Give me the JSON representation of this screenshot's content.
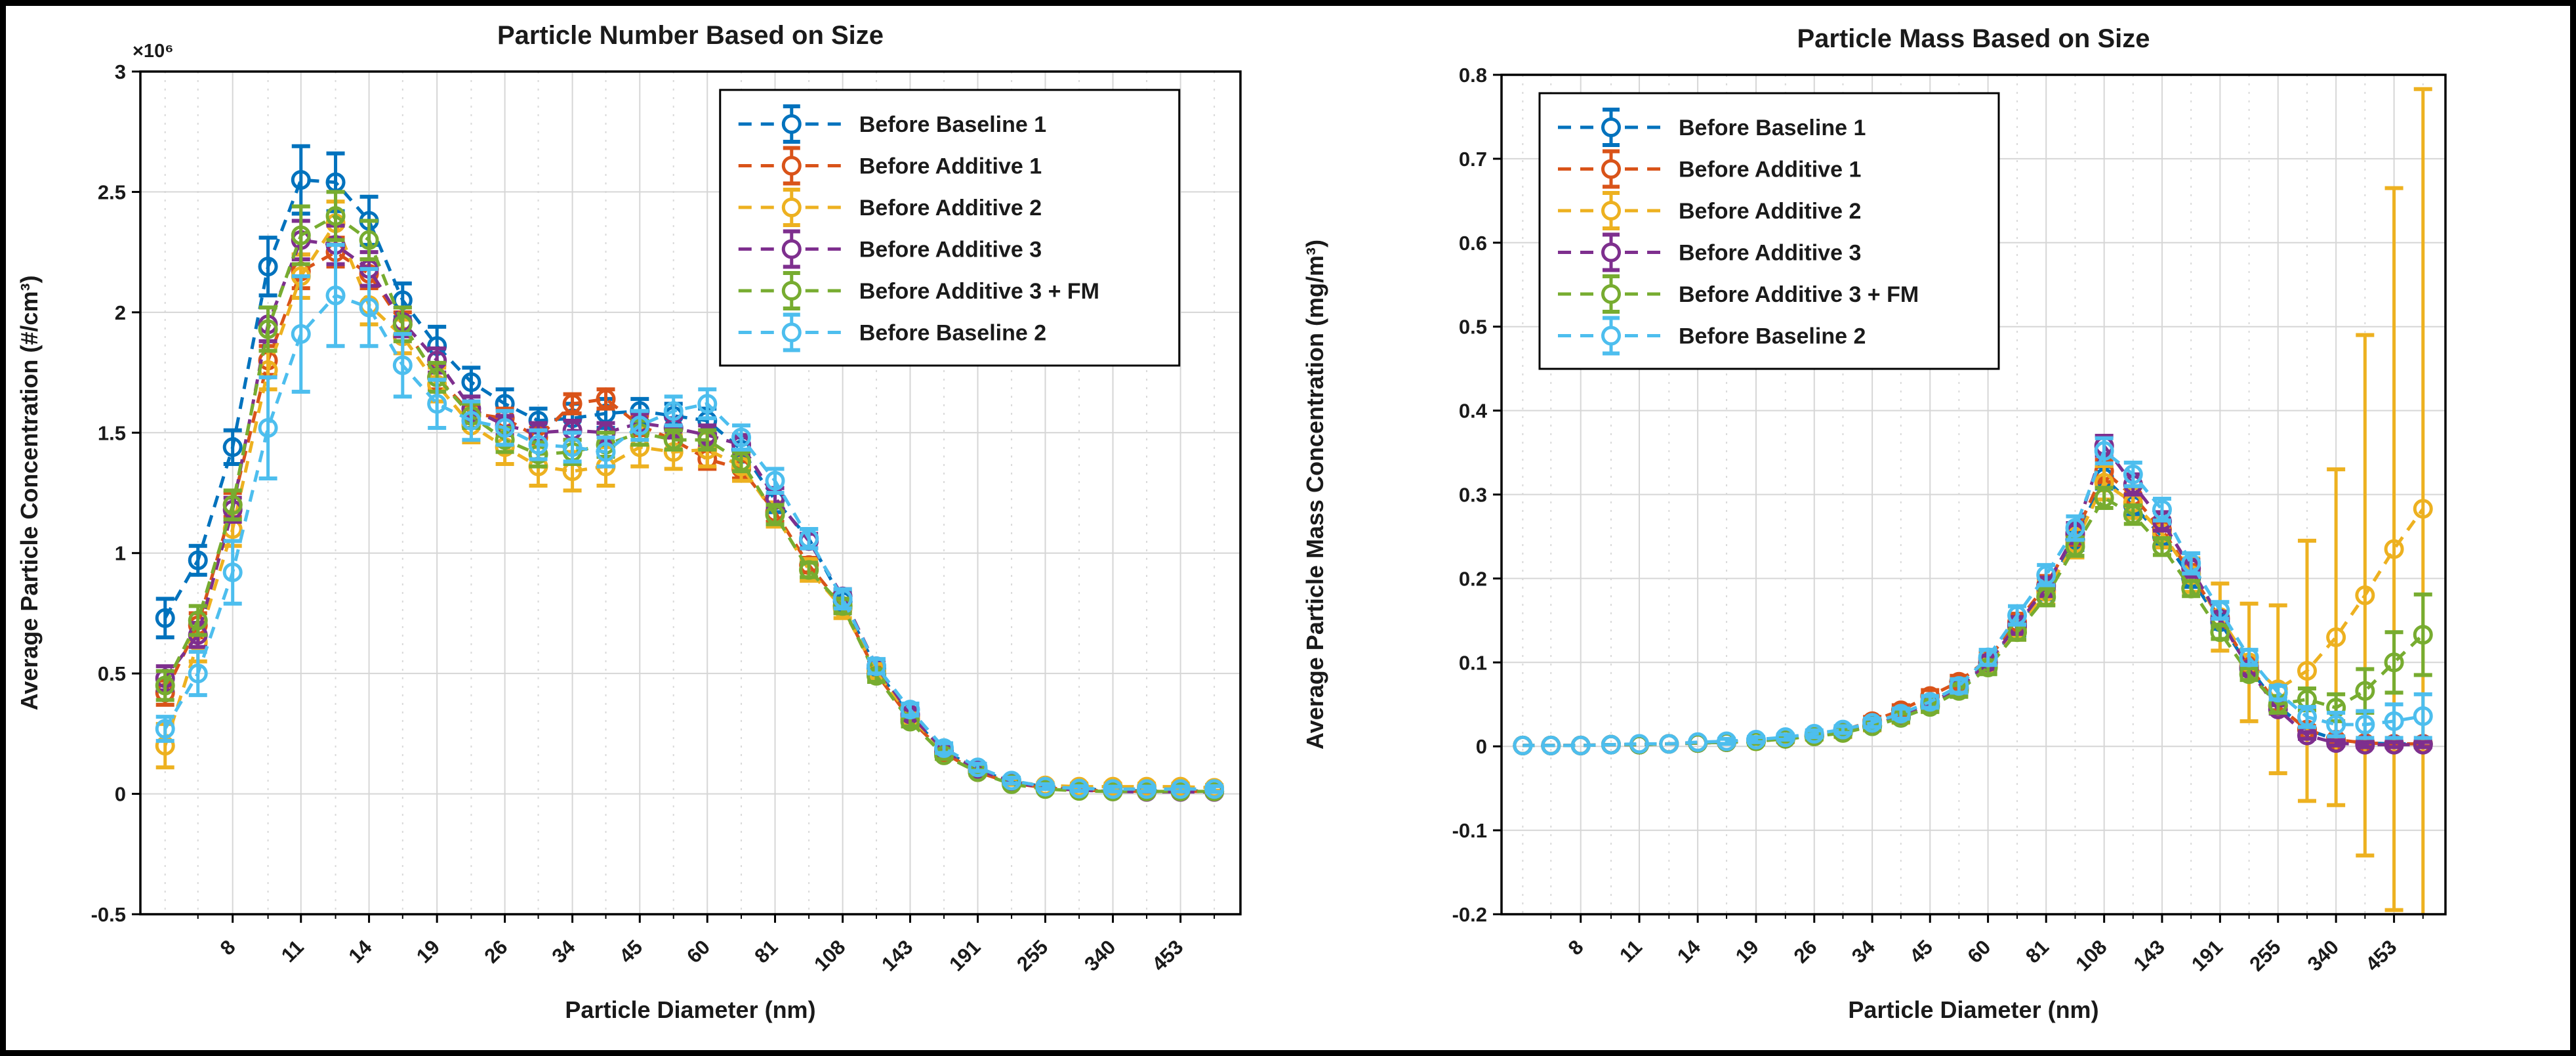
{
  "figure": {
    "background": "#ffffff",
    "frame_color": "#000000",
    "axis_color": "#000000",
    "grid_major_color": "#d6d6d6",
    "grid_minor_color": "#d9d9d9",
    "text_color": "#1a1a1a"
  },
  "chart_data": [
    {
      "type": "line",
      "id": "particle-number",
      "title": "Particle Number Based on Size",
      "xlabel": "Particle Diameter (nm)",
      "ylabel": "Average Particle Concentration (#/cm³)",
      "y_exponent_label": "×10⁶",
      "x_scale": "log",
      "xlim": [
        5.4,
        585
      ],
      "ylim": [
        -0.5,
        3
      ],
      "grid": true,
      "legend_position": "top-right-inside",
      "x": [
        6.0,
        6.9,
        8.0,
        9.3,
        10.7,
        12.4,
        14.3,
        16.5,
        19.1,
        22.1,
        25.5,
        29.4,
        34.0,
        39.2,
        45.3,
        52.3,
        60.4,
        69.8,
        80.6,
        93.1,
        107.5,
        124.1,
        143.3,
        165.5,
        191.1,
        220.7,
        254.8,
        294.3,
        339.8,
        392.4,
        453.2,
        523.3
      ],
      "x_tick_labels": [
        "8",
        "11",
        "14",
        "19",
        "26",
        "34",
        "45",
        "60",
        "81",
        "108",
        "143",
        "191",
        "255",
        "340",
        "453"
      ],
      "ytick_labels": [
        "-0.5",
        "0",
        "0.5",
        "1",
        "1.5",
        "2",
        "2.5",
        "3"
      ],
      "series": [
        {
          "name": "Before Baseline 1",
          "color": "#0072BD",
          "values": [
            0.73,
            0.97,
            1.44,
            2.19,
            2.55,
            2.54,
            2.38,
            2.05,
            1.86,
            1.71,
            1.62,
            1.55,
            1.56,
            1.58,
            1.59,
            1.57,
            1.55,
            1.43,
            1.22,
            1.06,
            0.8,
            0.52,
            0.32,
            0.18,
            0.1,
            0.05,
            0.03,
            0.02,
            0.015,
            0.012,
            0.012,
            0.012
          ],
          "errors": [
            0.08,
            0.06,
            0.07,
            0.12,
            0.14,
            0.12,
            0.1,
            0.07,
            0.08,
            0.06,
            0.06,
            0.05,
            0.06,
            0.06,
            0.05,
            0.05,
            0.05,
            0.05,
            0.05,
            0.04,
            0.04,
            0.03,
            0.03,
            0.02,
            0.015,
            0.01,
            0.008,
            0.006,
            0.005,
            0.005,
            0.005,
            0.005
          ]
        },
        {
          "name": "Before Additive 1",
          "color": "#D95319",
          "values": [
            0.42,
            0.7,
            1.2,
            1.8,
            2.17,
            2.25,
            2.16,
            1.95,
            1.73,
            1.58,
            1.56,
            1.48,
            1.62,
            1.64,
            1.53,
            1.47,
            1.39,
            1.35,
            1.17,
            0.95,
            0.78,
            0.5,
            0.31,
            0.17,
            0.09,
            0.045,
            0.025,
            0.015,
            0.012,
            0.01,
            0.01,
            0.01
          ],
          "errors": [
            0.05,
            0.05,
            0.05,
            0.06,
            0.07,
            0.06,
            0.06,
            0.05,
            0.05,
            0.04,
            0.04,
            0.04,
            0.04,
            0.04,
            0.04,
            0.04,
            0.04,
            0.04,
            0.04,
            0.03,
            0.03,
            0.025,
            0.02,
            0.015,
            0.01,
            0.008,
            0.006,
            0.005,
            0.005,
            0.005,
            0.005,
            0.005
          ]
        },
        {
          "name": "Before Additive 2",
          "color": "#EDB120",
          "values": [
            0.2,
            0.63,
            1.1,
            1.76,
            2.15,
            2.37,
            2.03,
            1.9,
            1.7,
            1.53,
            1.44,
            1.36,
            1.34,
            1.36,
            1.44,
            1.42,
            1.43,
            1.36,
            1.16,
            0.93,
            0.77,
            0.51,
            0.32,
            0.18,
            0.1,
            0.05,
            0.035,
            0.03,
            0.03,
            0.03,
            0.03,
            0.025
          ],
          "errors": [
            0.09,
            0.08,
            0.07,
            0.08,
            0.09,
            0.09,
            0.08,
            0.07,
            0.07,
            0.07,
            0.07,
            0.08,
            0.08,
            0.08,
            0.08,
            0.07,
            0.07,
            0.06,
            0.05,
            0.045,
            0.04,
            0.03,
            0.025,
            0.02,
            0.015,
            0.012,
            0.01,
            0.012,
            0.012,
            0.012,
            0.012,
            0.012
          ]
        },
        {
          "name": "Before Additive 3",
          "color": "#7E2F8E",
          "values": [
            0.48,
            0.66,
            1.18,
            1.95,
            2.3,
            2.28,
            2.18,
            1.96,
            1.8,
            1.6,
            1.53,
            1.5,
            1.51,
            1.5,
            1.54,
            1.52,
            1.49,
            1.45,
            1.23,
            1.05,
            0.82,
            0.53,
            0.33,
            0.18,
            0.1,
            0.05,
            0.025,
            0.015,
            0.01,
            0.008,
            0.008,
            0.008
          ],
          "errors": [
            0.05,
            0.05,
            0.05,
            0.07,
            0.08,
            0.08,
            0.07,
            0.06,
            0.05,
            0.05,
            0.04,
            0.04,
            0.04,
            0.04,
            0.04,
            0.04,
            0.04,
            0.04,
            0.04,
            0.03,
            0.03,
            0.025,
            0.02,
            0.015,
            0.01,
            0.008,
            0.006,
            0.005,
            0.005,
            0.005,
            0.005,
            0.005
          ]
        },
        {
          "name": "Before Additive 3 + FM",
          "color": "#77AC30",
          "values": [
            0.45,
            0.72,
            1.2,
            1.93,
            2.32,
            2.4,
            2.3,
            1.95,
            1.73,
            1.57,
            1.47,
            1.41,
            1.42,
            1.45,
            1.5,
            1.47,
            1.47,
            1.38,
            1.16,
            0.93,
            0.78,
            0.49,
            0.3,
            0.16,
            0.09,
            0.04,
            0.02,
            0.012,
            0.01,
            0.01,
            0.01,
            0.01
          ],
          "errors": [
            0.06,
            0.06,
            0.06,
            0.09,
            0.12,
            0.1,
            0.08,
            0.07,
            0.06,
            0.05,
            0.05,
            0.05,
            0.05,
            0.05,
            0.05,
            0.04,
            0.04,
            0.04,
            0.04,
            0.03,
            0.03,
            0.025,
            0.02,
            0.015,
            0.01,
            0.008,
            0.006,
            0.005,
            0.005,
            0.005,
            0.005,
            0.005
          ]
        },
        {
          "name": "Before Baseline 2",
          "color": "#4DBEEE",
          "values": [
            0.27,
            0.5,
            0.92,
            1.52,
            1.91,
            2.07,
            2.02,
            1.78,
            1.62,
            1.55,
            1.52,
            1.45,
            1.44,
            1.42,
            1.53,
            1.59,
            1.62,
            1.48,
            1.3,
            1.06,
            0.81,
            0.53,
            0.35,
            0.19,
            0.11,
            0.055,
            0.03,
            0.022,
            0.02,
            0.02,
            0.02,
            0.02
          ],
          "errors": [
            0.05,
            0.09,
            0.13,
            0.21,
            0.24,
            0.21,
            0.16,
            0.13,
            0.1,
            0.08,
            0.07,
            0.06,
            0.06,
            0.06,
            0.06,
            0.06,
            0.06,
            0.05,
            0.05,
            0.04,
            0.04,
            0.03,
            0.025,
            0.02,
            0.015,
            0.012,
            0.01,
            0.01,
            0.01,
            0.01,
            0.01,
            0.012
          ]
        }
      ]
    },
    {
      "type": "line",
      "id": "particle-mass",
      "title": "Particle Mass Based on Size",
      "xlabel": "Particle Diameter (nm)",
      "ylabel": "Average Particle Mass Concentration (mg/m³)",
      "y_exponent_label": "",
      "x_scale": "log",
      "xlim": [
        5.4,
        585
      ],
      "ylim": [
        -0.2,
        0.8
      ],
      "grid": true,
      "legend_position": "top-left-inside",
      "x": [
        6.0,
        6.9,
        8.0,
        9.3,
        10.7,
        12.4,
        14.3,
        16.5,
        19.1,
        22.1,
        25.5,
        29.4,
        34.0,
        39.2,
        45.3,
        52.3,
        60.4,
        69.8,
        80.6,
        93.1,
        107.5,
        124.1,
        143.3,
        165.5,
        191.1,
        220.7,
        254.8,
        294.3,
        339.8,
        392.4,
        453.2,
        523.3
      ],
      "x_tick_labels": [
        "8",
        "11",
        "14",
        "19",
        "26",
        "34",
        "45",
        "60",
        "81",
        "108",
        "143",
        "191",
        "255",
        "340",
        "453"
      ],
      "ytick_labels": [
        "-0.2",
        "-0.1",
        "0",
        "0.1",
        "0.2",
        "0.3",
        "0.4",
        "0.5",
        "0.6",
        "0.7",
        "0.8"
      ],
      "series": [
        {
          "name": "Before Baseline 1",
          "color": "#0072BD",
          "values": [
            0.001,
            0.001,
            0.001,
            0.002,
            0.002,
            0.003,
            0.004,
            0.005,
            0.007,
            0.009,
            0.012,
            0.017,
            0.024,
            0.034,
            0.048,
            0.068,
            0.098,
            0.142,
            0.186,
            0.246,
            0.32,
            0.287,
            0.25,
            0.2,
            0.148,
            0.094,
            0.048,
            0.02,
            0.008,
            0.004,
            0.003,
            0.003
          ],
          "errors": [
            0.002,
            0.002,
            0.002,
            0.002,
            0.002,
            0.002,
            0.002,
            0.002,
            0.003,
            0.003,
            0.003,
            0.004,
            0.004,
            0.005,
            0.006,
            0.007,
            0.008,
            0.01,
            0.011,
            0.012,
            0.013,
            0.012,
            0.011,
            0.01,
            0.008,
            0.006,
            0.005,
            0.004,
            0.003,
            0.003,
            0.003,
            0.003
          ]
        },
        {
          "name": "Before Additive 1",
          "color": "#D95319",
          "values": [
            0.001,
            0.001,
            0.001,
            0.002,
            0.002,
            0.003,
            0.004,
            0.005,
            0.007,
            0.01,
            0.014,
            0.019,
            0.03,
            0.043,
            0.06,
            0.077,
            0.104,
            0.148,
            0.192,
            0.252,
            0.328,
            0.298,
            0.258,
            0.206,
            0.152,
            0.096,
            0.048,
            0.02,
            0.008,
            0.004,
            0.003,
            0.003
          ],
          "errors": [
            0.002,
            0.002,
            0.002,
            0.002,
            0.002,
            0.002,
            0.002,
            0.002,
            0.003,
            0.003,
            0.003,
            0.004,
            0.005,
            0.006,
            0.007,
            0.007,
            0.008,
            0.01,
            0.011,
            0.012,
            0.013,
            0.012,
            0.011,
            0.01,
            0.008,
            0.006,
            0.005,
            0.004,
            0.003,
            0.003,
            0.003,
            0.003
          ]
        },
        {
          "name": "Before Additive 2",
          "color": "#EDB120",
          "values": [
            0.001,
            0.001,
            0.001,
            0.002,
            0.002,
            0.003,
            0.004,
            0.005,
            0.006,
            0.009,
            0.012,
            0.016,
            0.025,
            0.036,
            0.05,
            0.07,
            0.098,
            0.14,
            0.184,
            0.242,
            0.314,
            0.29,
            0.254,
            0.204,
            0.154,
            0.1,
            0.068,
            0.09,
            0.13,
            0.18,
            0.235,
            0.283
          ],
          "errors": [
            0.002,
            0.002,
            0.002,
            0.002,
            0.002,
            0.002,
            0.002,
            0.002,
            0.003,
            0.004,
            0.004,
            0.005,
            0.006,
            0.008,
            0.009,
            0.01,
            0.011,
            0.013,
            0.015,
            0.017,
            0.02,
            0.018,
            0.017,
            0.02,
            0.04,
            0.07,
            0.1,
            0.155,
            0.2,
            0.31,
            0.43,
            0.5
          ]
        },
        {
          "name": "Before Additive 3",
          "color": "#7E2F8E",
          "values": [
            0.001,
            0.001,
            0.001,
            0.002,
            0.002,
            0.003,
            0.004,
            0.005,
            0.007,
            0.009,
            0.013,
            0.017,
            0.025,
            0.036,
            0.051,
            0.07,
            0.1,
            0.144,
            0.19,
            0.254,
            0.358,
            0.312,
            0.268,
            0.212,
            0.152,
            0.092,
            0.044,
            0.013,
            0.004,
            0.002,
            0.002,
            0.002
          ],
          "errors": [
            0.002,
            0.002,
            0.002,
            0.002,
            0.002,
            0.002,
            0.002,
            0.002,
            0.003,
            0.003,
            0.003,
            0.004,
            0.004,
            0.005,
            0.006,
            0.007,
            0.008,
            0.01,
            0.011,
            0.012,
            0.012,
            0.012,
            0.011,
            0.01,
            0.008,
            0.006,
            0.005,
            0.004,
            0.003,
            0.003,
            0.003,
            0.003
          ]
        },
        {
          "name": "Before Additive 3 + FM",
          "color": "#77AC30",
          "values": [
            0.001,
            0.001,
            0.001,
            0.002,
            0.002,
            0.003,
            0.004,
            0.005,
            0.006,
            0.009,
            0.012,
            0.016,
            0.024,
            0.034,
            0.047,
            0.066,
            0.094,
            0.136,
            0.178,
            0.238,
            0.296,
            0.276,
            0.238,
            0.188,
            0.136,
            0.086,
            0.05,
            0.056,
            0.046,
            0.066,
            0.1,
            0.133
          ],
          "errors": [
            0.002,
            0.002,
            0.002,
            0.002,
            0.002,
            0.002,
            0.002,
            0.002,
            0.003,
            0.003,
            0.003,
            0.004,
            0.004,
            0.005,
            0.006,
            0.007,
            0.008,
            0.009,
            0.01,
            0.011,
            0.012,
            0.011,
            0.01,
            0.009,
            0.008,
            0.007,
            0.01,
            0.013,
            0.016,
            0.026,
            0.036,
            0.048
          ]
        },
        {
          "name": "Before Baseline 2",
          "color": "#4DBEEE",
          "values": [
            0.001,
            0.001,
            0.001,
            0.002,
            0.003,
            0.003,
            0.005,
            0.006,
            0.008,
            0.011,
            0.015,
            0.02,
            0.028,
            0.039,
            0.053,
            0.072,
            0.106,
            0.156,
            0.204,
            0.26,
            0.352,
            0.324,
            0.282,
            0.218,
            0.162,
            0.106,
            0.064,
            0.035,
            0.026,
            0.026,
            0.03,
            0.036
          ],
          "errors": [
            0.002,
            0.002,
            0.002,
            0.002,
            0.002,
            0.002,
            0.002,
            0.003,
            0.003,
            0.003,
            0.004,
            0.004,
            0.005,
            0.006,
            0.007,
            0.008,
            0.009,
            0.011,
            0.012,
            0.014,
            0.015,
            0.014,
            0.013,
            0.012,
            0.01,
            0.009,
            0.008,
            0.012,
            0.014,
            0.016,
            0.02,
            0.026
          ]
        }
      ]
    }
  ]
}
